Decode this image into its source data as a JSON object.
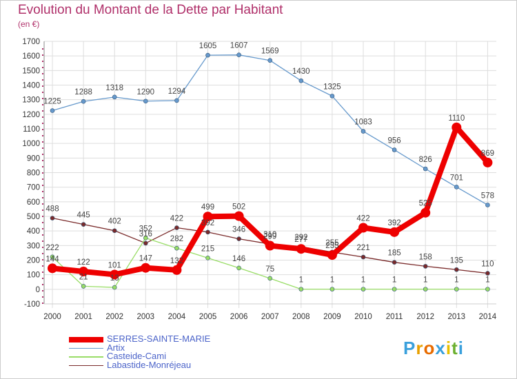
{
  "title": "Evolution du Montant de la Dette par Habitant",
  "unit_label": "(en €)",
  "brand": {
    "letters": [
      "P",
      "r",
      "o",
      "x",
      "i",
      "t",
      "i"
    ],
    "colors": [
      "#3aa0dc",
      "#e8a000",
      "#e86c00",
      "#3aa0dc",
      "#e8c000",
      "#6cb030",
      "#3aa0dc"
    ]
  },
  "chart_data": {
    "type": "line",
    "x": [
      2000,
      2001,
      2002,
      2003,
      2004,
      2005,
      2006,
      2007,
      2008,
      2009,
      2010,
      2011,
      2012,
      2013,
      2014
    ],
    "ylim": [
      -100,
      1700
    ],
    "yticks": [
      -100,
      0,
      100,
      200,
      300,
      400,
      500,
      600,
      700,
      800,
      900,
      1000,
      1100,
      1200,
      1300,
      1400,
      1500,
      1600,
      1700
    ],
    "grid": true,
    "legend_position": "bottom-left",
    "series": [
      {
        "name": "SERRES-SAINTE-MARIE",
        "color": "#ee0000",
        "values": [
          144,
          122,
          101,
          147,
          132,
          499,
          502,
          299,
          277,
          235,
          422,
          392,
          525,
          1110,
          869
        ],
        "labels": [
          "144",
          "122",
          "101",
          "147",
          "132",
          "499",
          "502",
          "299",
          "277",
          "235",
          "422",
          "392",
          "525",
          "1110",
          "869"
        ]
      },
      {
        "name": "Artix",
        "color": "#6699cc",
        "values": [
          1225,
          1288,
          1318,
          1290,
          1294,
          1605,
          1607,
          1569,
          1430,
          1325,
          1083,
          956,
          826,
          701,
          578
        ],
        "labels": [
          "1225",
          "1288",
          "1318",
          "1290",
          "1294",
          "1605",
          "1607",
          "1569",
          "1430",
          "1325",
          "1083",
          "956",
          "826",
          "701",
          "578"
        ]
      },
      {
        "name": "Casteide-Cami",
        "color": "#99dd66",
        "values": [
          222,
          21,
          13,
          352,
          282,
          215,
          146,
          75,
          1,
          1,
          1,
          1,
          1,
          1,
          1
        ],
        "labels": [
          "222",
          "21",
          "13",
          "352",
          "282",
          "215",
          "146",
          "75",
          "1",
          "1",
          "1",
          "1",
          "1",
          "1",
          "1"
        ]
      },
      {
        "name": "Labastide-Monréjeau",
        "color": "#7a2a2a",
        "values": [
          488,
          445,
          402,
          316,
          422,
          392,
          346,
          310,
          292,
          255,
          221,
          185,
          158,
          135,
          110
        ],
        "labels": [
          "488",
          "445",
          "402",
          "316",
          "422",
          "392",
          "346",
          "310",
          "292",
          "255",
          "221",
          "185",
          "158",
          "135",
          "110"
        ]
      }
    ]
  }
}
